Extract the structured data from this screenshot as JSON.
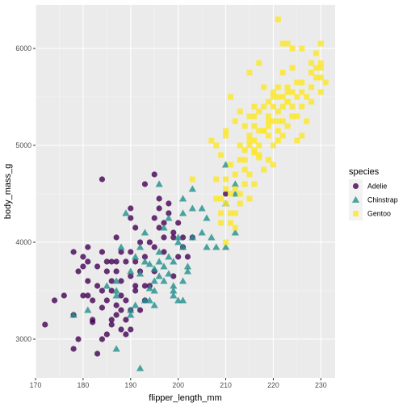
{
  "chart_data": {
    "type": "scatter",
    "xlabel": "flipper_length_mm",
    "ylabel": "body_mass_g",
    "xlim": [
      170,
      233
    ],
    "ylim": [
      2600,
      6450
    ],
    "x_ticks": [
      170,
      180,
      190,
      200,
      210,
      220,
      230
    ],
    "y_ticks": [
      3000,
      4000,
      5000,
      6000
    ],
    "grid": true,
    "legend": {
      "title": "species",
      "position": "right",
      "entries": [
        {
          "name": "Adelie",
          "color": "#440154",
          "shape": "circle"
        },
        {
          "name": "Chinstrap",
          "color": "#21908C",
          "shape": "triangle"
        },
        {
          "name": "Gentoo",
          "color": "#FDE725",
          "shape": "square"
        }
      ]
    },
    "series": [
      {
        "name": "Adelie",
        "color": "#440154",
        "shape": "circle",
        "points": [
          [
            172,
            3150
          ],
          [
            174,
            3400
          ],
          [
            176,
            3450
          ],
          [
            178,
            3250
          ],
          [
            178,
            2900
          ],
          [
            179,
            3000
          ],
          [
            180,
            3450
          ],
          [
            180,
            3750
          ],
          [
            181,
            3950
          ],
          [
            181,
            3800
          ],
          [
            181,
            3600
          ],
          [
            182,
            3175
          ],
          [
            182,
            3200
          ],
          [
            183,
            2850
          ],
          [
            183,
            3550
          ],
          [
            184,
            3325
          ],
          [
            184,
            3900
          ],
          [
            185,
            3700
          ],
          [
            185,
            3400
          ],
          [
            185,
            3050
          ],
          [
            186,
            3500
          ],
          [
            186,
            3800
          ],
          [
            186,
            3150
          ],
          [
            187,
            3700
          ],
          [
            187,
            3350
          ],
          [
            187,
            3250
          ],
          [
            188,
            3600
          ],
          [
            188,
            3900
          ],
          [
            188,
            3450
          ],
          [
            189,
            3200
          ],
          [
            189,
            3800
          ],
          [
            190,
            3650
          ],
          [
            190,
            3900
          ],
          [
            190,
            4250
          ],
          [
            190,
            3300
          ],
          [
            191,
            3800
          ],
          [
            191,
            4150
          ],
          [
            191,
            3550
          ],
          [
            192,
            3700
          ],
          [
            192,
            4000
          ],
          [
            193,
            3850
          ],
          [
            193,
            3400
          ],
          [
            194,
            4000
          ],
          [
            194,
            3550
          ],
          [
            195,
            3950
          ],
          [
            195,
            3700
          ],
          [
            196,
            4350
          ],
          [
            196,
            4150
          ],
          [
            197,
            4200
          ],
          [
            197,
            3900
          ],
          [
            198,
            4300
          ],
          [
            198,
            4400
          ],
          [
            199,
            3650
          ],
          [
            199,
            4100
          ],
          [
            200,
            4200
          ],
          [
            201,
            3950
          ],
          [
            201,
            4050
          ],
          [
            202,
            3850
          ],
          [
            203,
            4050
          ],
          [
            184,
            4650
          ],
          [
            181,
            3450
          ],
          [
            183,
            3750
          ],
          [
            185,
            3800
          ],
          [
            186,
            3200
          ],
          [
            188,
            3300
          ],
          [
            189,
            3050
          ],
          [
            190,
            3100
          ],
          [
            191,
            3500
          ],
          [
            184,
            3000
          ],
          [
            186,
            3600
          ],
          [
            187,
            3800
          ],
          [
            190,
            4350
          ],
          [
            195,
            4250
          ],
          [
            196,
            4450
          ],
          [
            180,
            3850
          ],
          [
            178,
            3900
          ],
          [
            179,
            3700
          ],
          [
            182,
            3400
          ],
          [
            184,
            3500
          ],
          [
            187,
            4050
          ],
          [
            188,
            3100
          ],
          [
            189,
            3400
          ],
          [
            193,
            4600
          ],
          [
            195,
            4700
          ],
          [
            197,
            4050
          ],
          [
            199,
            4050
          ],
          [
            210,
            4500
          ],
          [
            200,
            3850
          ],
          [
            193,
            3550
          ],
          [
            192,
            3300
          ]
        ]
      },
      {
        "name": "Chinstrap",
        "color": "#21908C",
        "shape": "triangle",
        "points": [
          [
            178,
            3250
          ],
          [
            187,
            2900
          ],
          [
            192,
            2700
          ],
          [
            187,
            3600
          ],
          [
            190,
            3700
          ],
          [
            191,
            3850
          ],
          [
            193,
            3800
          ],
          [
            195,
            3600
          ],
          [
            196,
            3650
          ],
          [
            198,
            3675
          ],
          [
            199,
            3800
          ],
          [
            200,
            4050
          ],
          [
            201,
            3950
          ],
          [
            201,
            3400
          ],
          [
            202,
            3700
          ],
          [
            203,
            4050
          ],
          [
            205,
            4100
          ],
          [
            206,
            3950
          ],
          [
            207,
            4050
          ],
          [
            208,
            3950
          ],
          [
            210,
            4400
          ],
          [
            210,
            3950
          ],
          [
            212,
            4100
          ],
          [
            193,
            4100
          ],
          [
            195,
            3500
          ],
          [
            196,
            3900
          ],
          [
            197,
            3600
          ],
          [
            199,
            3500
          ],
          [
            200,
            3400
          ],
          [
            201,
            4300
          ],
          [
            202,
            3750
          ],
          [
            203,
            4350
          ],
          [
            205,
            4350
          ],
          [
            210,
            4800
          ],
          [
            212,
            4500
          ],
          [
            192,
            3675
          ],
          [
            194,
            3775
          ],
          [
            195,
            3350
          ],
          [
            197,
            3750
          ],
          [
            198,
            3850
          ],
          [
            187,
            3500
          ],
          [
            190,
            3250
          ],
          [
            191,
            3350
          ],
          [
            193,
            3400
          ],
          [
            194,
            3525
          ],
          [
            195,
            3725
          ],
          [
            199,
            3550
          ],
          [
            200,
            4000
          ],
          [
            190,
            3300
          ],
          [
            201,
            3600
          ],
          [
            196,
            4600
          ],
          [
            198,
            4250
          ],
          [
            187,
            3450
          ],
          [
            185,
            3550
          ],
          [
            181,
            3300
          ],
          [
            188,
            3950
          ],
          [
            189,
            4300
          ],
          [
            194,
            3400
          ],
          [
            197,
            4150
          ],
          [
            201,
            4450
          ],
          [
            206,
            4250
          ],
          [
            212,
            4600
          ],
          [
            199,
            3450
          ],
          [
            203,
            4550
          ],
          [
            192,
            3950
          ],
          [
            196,
            3800
          ]
        ]
      },
      {
        "name": "Gentoo",
        "color": "#FDE725",
        "shape": "square",
        "points": [
          [
            203,
            4650
          ],
          [
            208,
            4650
          ],
          [
            208,
            4450
          ],
          [
            209,
            4450
          ],
          [
            209,
            4200
          ],
          [
            210,
            4550
          ],
          [
            210,
            4400
          ],
          [
            210,
            4650
          ],
          [
            211,
            4800
          ],
          [
            211,
            4300
          ],
          [
            211,
            4500
          ],
          [
            212,
            4700
          ],
          [
            212,
            4150
          ],
          [
            212,
            4550
          ],
          [
            213,
            4500
          ],
          [
            213,
            4850
          ],
          [
            214,
            4750
          ],
          [
            214,
            4850
          ],
          [
            215,
            4450
          ],
          [
            215,
            5000
          ],
          [
            215,
            4700
          ],
          [
            216,
            4600
          ],
          [
            216,
            5050
          ],
          [
            216,
            4925
          ],
          [
            217,
            4875
          ],
          [
            217,
            5000
          ],
          [
            218,
            5150
          ],
          [
            218,
            4750
          ],
          [
            219,
            5250
          ],
          [
            219,
            4850
          ],
          [
            220,
            5250
          ],
          [
            220,
            4800
          ],
          [
            220,
            5400
          ],
          [
            220,
            5550
          ],
          [
            221,
            5500
          ],
          [
            221,
            5150
          ],
          [
            221,
            5600
          ],
          [
            222,
            5500
          ],
          [
            222,
            5250
          ],
          [
            222,
            5750
          ],
          [
            223,
            5600
          ],
          [
            223,
            5550
          ],
          [
            224,
            5400
          ],
          [
            224,
            5800
          ],
          [
            225,
            5500
          ],
          [
            225,
            5300
          ],
          [
            226,
            5400
          ],
          [
            226,
            5100
          ],
          [
            227,
            5250
          ],
          [
            228,
            5600
          ],
          [
            228,
            5750
          ],
          [
            229,
            5700
          ],
          [
            229,
            5950
          ],
          [
            230,
            5550
          ],
          [
            230,
            6050
          ],
          [
            230,
            5800
          ],
          [
            231,
            5650
          ],
          [
            221,
            6300
          ],
          [
            222,
            6050
          ],
          [
            223,
            6050
          ],
          [
            217,
            5850
          ],
          [
            215,
            5750
          ],
          [
            216,
            4950
          ],
          [
            213,
            5000
          ],
          [
            214,
            5200
          ],
          [
            215,
            5300
          ],
          [
            216,
            5400
          ],
          [
            217,
            5150
          ],
          [
            218,
            5600
          ],
          [
            219,
            5300
          ],
          [
            219,
            5200
          ],
          [
            220,
            5000
          ],
          [
            221,
            5350
          ],
          [
            222,
            5100
          ],
          [
            223,
            5450
          ],
          [
            224,
            5550
          ],
          [
            225,
            5050
          ],
          [
            226,
            5650
          ],
          [
            227,
            5500
          ],
          [
            228,
            5450
          ],
          [
            229,
            5800
          ],
          [
            230,
            5850
          ],
          [
            211,
            5500
          ],
          [
            212,
            5250
          ],
          [
            209,
            4900
          ],
          [
            208,
            5000
          ],
          [
            207,
            5050
          ],
          [
            210,
            5150
          ],
          [
            213,
            5350
          ],
          [
            214,
            4950
          ],
          [
            215,
            5100
          ],
          [
            216,
            5200
          ],
          [
            217,
            5350
          ],
          [
            218,
            5400
          ],
          [
            219,
            5450
          ],
          [
            220,
            5500
          ],
          [
            221,
            5050
          ],
          [
            222,
            5400
          ],
          [
            223,
            5450
          ],
          [
            224,
            5300
          ],
          [
            225,
            5650
          ],
          [
            226,
            5550
          ],
          [
            228,
            5850
          ],
          [
            230,
            5700
          ],
          [
            217,
            4900
          ],
          [
            216,
            5300
          ],
          [
            214,
            4600
          ],
          [
            213,
            4400
          ],
          [
            212,
            4300
          ],
          [
            211,
            4200
          ],
          [
            210,
            4000
          ],
          [
            209,
            4300
          ],
          [
            210,
            5100
          ],
          [
            215,
            5050
          ],
          [
            221,
            5250
          ],
          [
            226,
            6000
          ],
          [
            224,
            6000
          ],
          [
            219,
            5100
          ],
          [
            218,
            5150
          ],
          [
            223,
            5200
          ]
        ]
      }
    ]
  }
}
